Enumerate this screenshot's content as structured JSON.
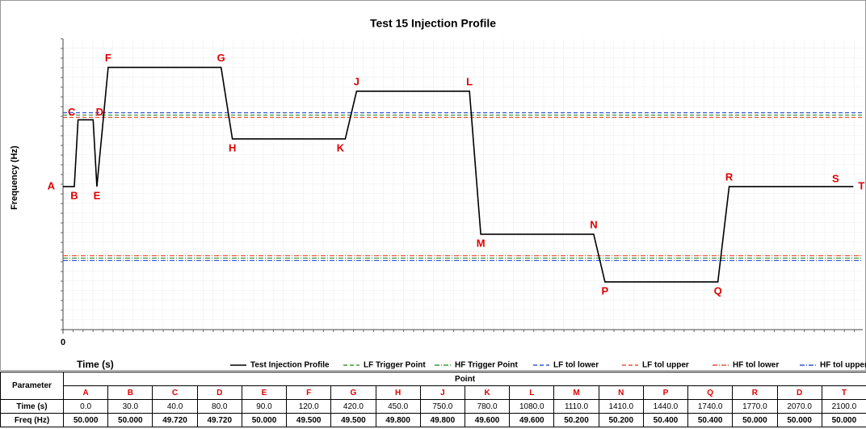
{
  "chart_data": {
    "type": "line",
    "title": "Test 15 Injection Profile",
    "ylabel": "Frequency (Hz)",
    "xlabel": "Time (s)",
    "xlim": [
      0,
      2125
    ],
    "xticks": [
      0
    ],
    "ylim": [
      50.6,
      49.38
    ],
    "grid": true,
    "point_labels": [
      "A",
      "B",
      "C",
      "D",
      "E",
      "F",
      "G",
      "H",
      "K",
      "J",
      "L",
      "M",
      "N",
      "P",
      "Q",
      "R",
      "S",
      "T"
    ],
    "series": [
      {
        "name": "Test Injection Profile",
        "color": "#000000",
        "dash": "solid",
        "x": [
          0,
          30,
          40,
          80,
          90,
          120,
          420,
          450,
          750,
          780,
          1080,
          1110,
          1410,
          1440,
          1740,
          1770,
          2070,
          2100
        ],
        "values": [
          50,
          50,
          49.72,
          49.72,
          50,
          49.5,
          49.5,
          49.8,
          49.8,
          49.6,
          49.6,
          50.2,
          50.2,
          50.4,
          50.4,
          50,
          50,
          50
        ]
      },
      {
        "name": "LF Trigger Point",
        "color": "#3a9a3a",
        "dash": "dashed",
        "x": [
          0,
          2125
        ],
        "values": [
          49.7,
          49.7
        ]
      },
      {
        "name": "HF Trigger Point",
        "color": "#3a9a3a",
        "dash": "dashdot",
        "x": [
          0,
          2125
        ],
        "values": [
          50.3,
          50.3
        ]
      },
      {
        "name": "LF tol lower",
        "color": "#3355dd",
        "dash": "dashed",
        "x": [
          0,
          2125
        ],
        "values": [
          49.69,
          49.69
        ]
      },
      {
        "name": "LF tol upper",
        "color": "#e8553a",
        "dash": "dashed",
        "x": [
          0,
          2125
        ],
        "values": [
          49.71,
          49.71
        ]
      },
      {
        "name": "HF tol lower",
        "color": "#e8553a",
        "dash": "dashdot",
        "x": [
          0,
          2125
        ],
        "values": [
          50.29,
          50.29
        ]
      },
      {
        "name": "HF tol upper",
        "color": "#3355dd",
        "dash": "dashdot",
        "x": [
          0,
          2125
        ],
        "values": [
          50.31,
          50.31
        ]
      }
    ]
  },
  "table": {
    "corner": "Parameter",
    "group": "Point",
    "columns": [
      "A",
      "B",
      "C",
      "D",
      "E",
      "F",
      "G",
      "H",
      "J",
      "K",
      "L",
      "M",
      "N",
      "P",
      "Q",
      "R",
      "D",
      "T"
    ],
    "rows": [
      {
        "label": "Time (s)",
        "cells": [
          "0.0",
          "30.0",
          "40.0",
          "80.0",
          "90.0",
          "120.0",
          "420.0",
          "450.0",
          "750.0",
          "780.0",
          "1080.0",
          "1110.0",
          "1410.0",
          "1440.0",
          "1740.0",
          "1770.0",
          "2070.0",
          "2100.0"
        ]
      },
      {
        "label": "Freq (Hz)",
        "cells": [
          "50.000",
          "50.000",
          "49.720",
          "49.720",
          "50.000",
          "49.500",
          "49.500",
          "49.800",
          "49.800",
          "49.600",
          "49.600",
          "50.200",
          "50.200",
          "50.400",
          "50.400",
          "50.000",
          "50.000",
          "50.000"
        ]
      }
    ]
  }
}
